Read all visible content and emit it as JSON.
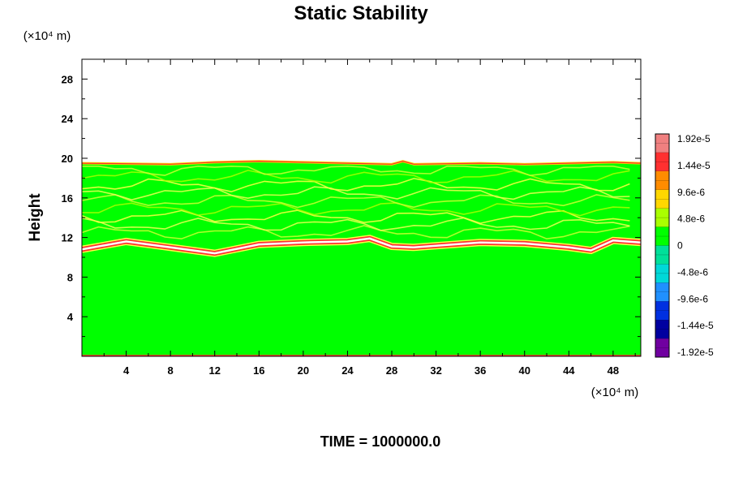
{
  "chart_data": {
    "type": "heatmap",
    "title": "Static Stability",
    "ylabel": "Height",
    "x_unit_label": "(×10⁴ m)",
    "y_unit_label": "(×10⁴ m)",
    "footer": "TIME = 1000000.0",
    "xlim": [
      0,
      50.5
    ],
    "ylim": [
      0,
      30
    ],
    "x_ticks": [
      4,
      8,
      12,
      16,
      20,
      24,
      28,
      32,
      36,
      40,
      44,
      48
    ],
    "x_tick_labels": [
      "4",
      "8",
      "12",
      "16",
      "20",
      "24",
      "28",
      "32",
      "36",
      "40",
      "44",
      "48"
    ],
    "y_ticks": [
      4,
      8,
      12,
      16,
      20,
      24,
      28
    ],
    "y_tick_labels": [
      "4",
      "8",
      "12",
      "16",
      "20",
      "24",
      "28"
    ],
    "field_top_height": 19.7,
    "colorbar": {
      "min": -1.92e-05,
      "max": 1.92e-05,
      "tick_labels": [
        "1.92e-5",
        "1.44e-5",
        "9.6e-6",
        "4.8e-6",
        "0",
        "-4.8e-6",
        "-9.6e-6",
        "-1.44e-5",
        "-1.92e-5"
      ],
      "colors": [
        "#f08080",
        "#ff3030",
        "#ff8c00",
        "#ffd700",
        "#aaff00",
        "#00ff00",
        "#00e09a",
        "#00d8d8",
        "#2090ff",
        "#0030e0",
        "#0000a0",
        "#7000a0"
      ]
    },
    "tropopause_band": {
      "description_values_x": [
        0,
        4,
        8,
        12,
        16,
        20,
        24,
        26,
        28,
        30,
        36,
        40,
        44,
        46,
        48,
        50.5
      ],
      "height": [
        10.8,
        11.6,
        11.0,
        10.4,
        11.3,
        11.5,
        11.6,
        11.9,
        11.1,
        11.0,
        11.5,
        11.4,
        11.0,
        10.7,
        11.7,
        11.5
      ]
    },
    "upper_boundary": {
      "x": [
        0,
        8,
        12,
        16,
        20,
        24,
        28,
        29,
        30,
        36,
        40,
        44,
        48,
        50.5
      ],
      "height": [
        19.5,
        19.4,
        19.6,
        19.7,
        19.6,
        19.5,
        19.4,
        19.7,
        19.4,
        19.5,
        19.4,
        19.5,
        19.6,
        19.5
      ]
    }
  }
}
